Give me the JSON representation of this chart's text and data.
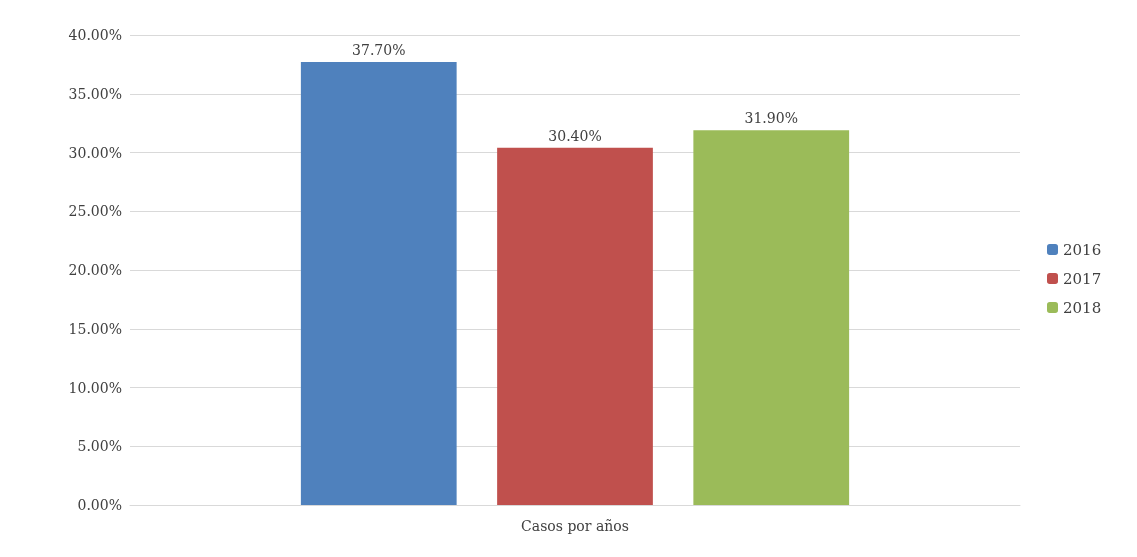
{
  "chart_data": {
    "type": "bar",
    "categories": [
      "Casos por años"
    ],
    "series": [
      {
        "name": "2016",
        "color": "#4f81bd",
        "values": [
          37.7
        ],
        "value_labels": [
          "37.70%"
        ]
      },
      {
        "name": "2017",
        "color": "#c0504d",
        "values": [
          30.4
        ],
        "value_labels": [
          "30.40%"
        ]
      },
      {
        "name": "2018",
        "color": "#9bbb59",
        "values": [
          31.9
        ],
        "value_labels": [
          "31.90%"
        ]
      }
    ],
    "ylim": [
      0,
      40
    ],
    "yticks": [
      {
        "value": 0,
        "label": "0.00%"
      },
      {
        "value": 5,
        "label": "5.00%"
      },
      {
        "value": 10,
        "label": "10.00%"
      },
      {
        "value": 15,
        "label": "15.00%"
      },
      {
        "value": 20,
        "label": "20.00%"
      },
      {
        "value": 25,
        "label": "25.00%"
      },
      {
        "value": 30,
        "label": "30.00%"
      },
      {
        "value": 35,
        "label": "35.00%"
      },
      {
        "value": 40,
        "label": "40.00%"
      }
    ],
    "grid": "y",
    "legend": "right"
  }
}
